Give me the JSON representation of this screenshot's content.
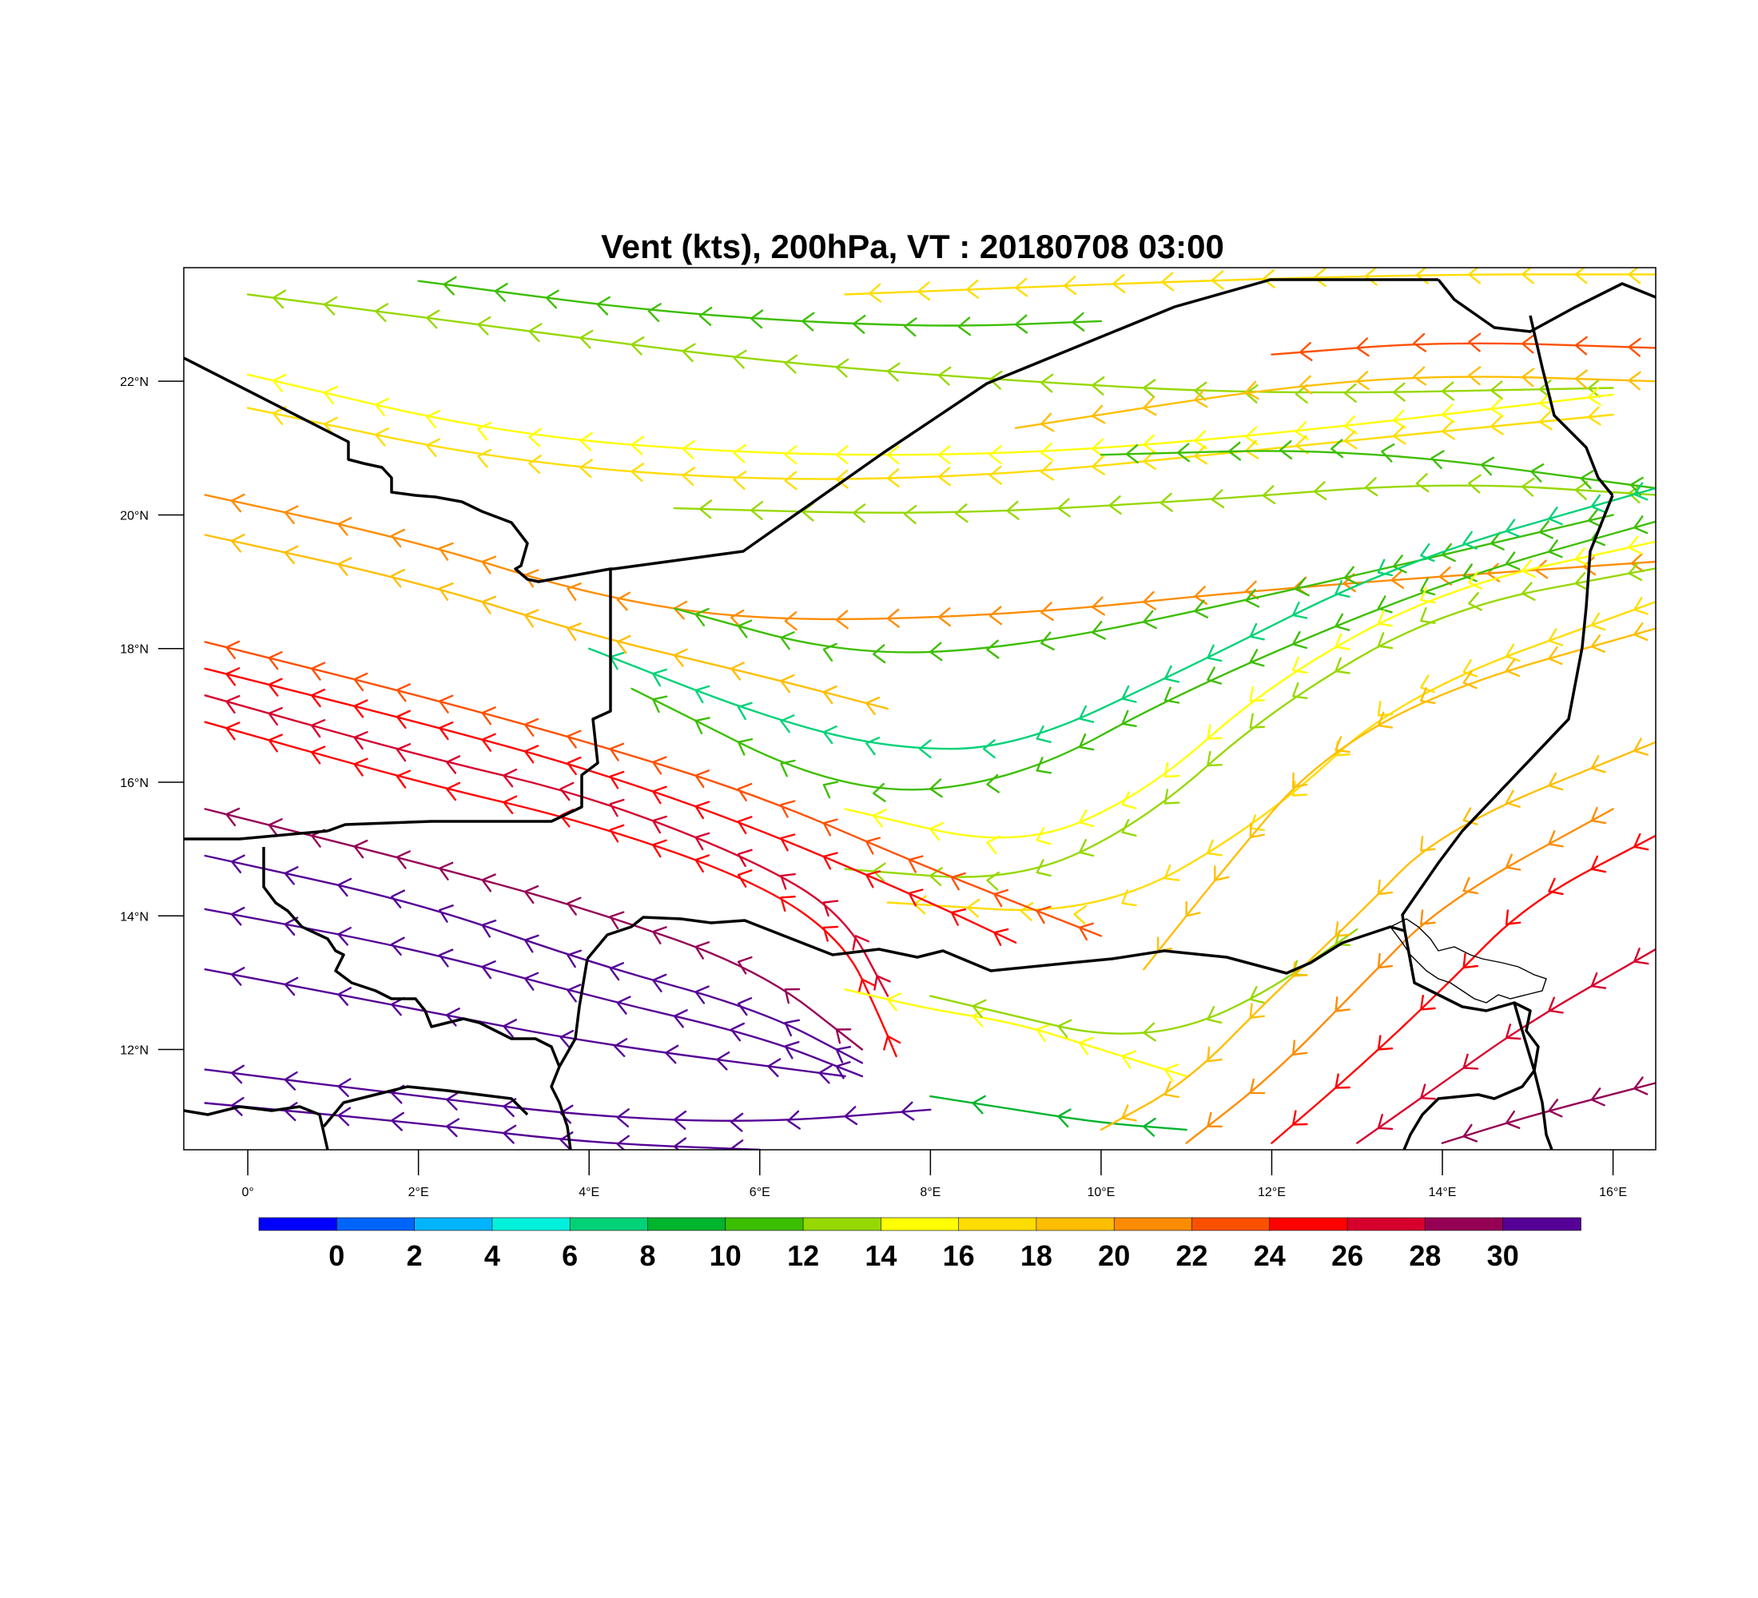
{
  "title": "Vent (kts), 200hPa, VT : 20180708  03:00",
  "lat_labels": [
    "22°N",
    "20°N",
    "18°N",
    "16°N",
    "14°N",
    "12°N"
  ],
  "lon_labels": [
    "0°",
    "2°E",
    "4°E",
    "6°E",
    "8°E",
    "10°E",
    "12°E",
    "14°E",
    "16°E"
  ],
  "colorbar": {
    "labels": [
      "0",
      "2",
      "4",
      "6",
      "8",
      "10",
      "12",
      "14",
      "16",
      "18",
      "20",
      "22",
      "24",
      "26",
      "28",
      "30"
    ],
    "colors": [
      "#0000ff",
      "#0064ff",
      "#00b4ff",
      "#00f0dc",
      "#00d278",
      "#00b42d",
      "#3cbe00",
      "#96d800",
      "#ffff00",
      "#ffdc00",
      "#ffbe00",
      "#ff8c00",
      "#ff5000",
      "#ff0000",
      "#d7002d",
      "#960055",
      "#550096"
    ]
  },
  "chart_data": {
    "type": "streamline-map",
    "variable": "Vent (kts)",
    "level": "200hPa",
    "valid_time": "20180708  03:00",
    "lon_range": [
      -0.75,
      16.5
    ],
    "lat_range": [
      10.5,
      23.7
    ],
    "colorbar_range": [
      0,
      30
    ],
    "streamlines": [
      {
        "speed": 12,
        "points": [
          [
            0,
            23.3
          ],
          [
            3,
            22.8
          ],
          [
            6,
            22.3
          ],
          [
            9,
            22.0
          ],
          [
            12,
            21.8
          ],
          [
            16,
            21.9
          ]
        ]
      },
      {
        "speed": 10,
        "points": [
          [
            2,
            23.5
          ],
          [
            5,
            23.0
          ],
          [
            8,
            22.8
          ],
          [
            10,
            22.9
          ]
        ]
      },
      {
        "speed": 16,
        "points": [
          [
            7,
            23.3
          ],
          [
            11,
            23.5
          ],
          [
            14,
            23.6
          ],
          [
            16.5,
            23.6
          ]
        ]
      },
      {
        "speed": 14,
        "points": [
          [
            0,
            22.1
          ],
          [
            3,
            21.2
          ],
          [
            6,
            20.9
          ],
          [
            9,
            20.9
          ],
          [
            12,
            21.2
          ],
          [
            16,
            21.8
          ]
        ]
      },
      {
        "speed": 16,
        "points": [
          [
            0,
            21.6
          ],
          [
            3,
            20.8
          ],
          [
            6,
            20.5
          ],
          [
            9,
            20.6
          ],
          [
            12,
            21.0
          ],
          [
            16,
            21.5
          ]
        ]
      },
      {
        "speed": 18,
        "points": [
          [
            9,
            21.3
          ],
          [
            12,
            21.9
          ],
          [
            14,
            22.1
          ],
          [
            16.5,
            22.0
          ]
        ]
      },
      {
        "speed": 22,
        "points": [
          [
            12,
            22.4
          ],
          [
            14,
            22.6
          ],
          [
            16.5,
            22.5
          ]
        ]
      },
      {
        "speed": 12,
        "points": [
          [
            5,
            20.1
          ],
          [
            8,
            20.0
          ],
          [
            11,
            20.2
          ],
          [
            14,
            20.5
          ],
          [
            16.5,
            20.3
          ]
        ]
      },
      {
        "speed": 10,
        "points": [
          [
            10,
            20.9
          ],
          [
            13,
            21.0
          ],
          [
            16.5,
            20.4
          ]
        ]
      },
      {
        "speed": 20,
        "points": [
          [
            -0.5,
            20.3
          ],
          [
            2,
            19.6
          ],
          [
            4,
            18.8
          ],
          [
            6,
            18.4
          ],
          [
            9,
            18.5
          ],
          [
            12,
            18.9
          ],
          [
            16.5,
            19.3
          ]
        ]
      },
      {
        "speed": 18,
        "points": [
          [
            -0.5,
            19.7
          ],
          [
            2,
            19.0
          ],
          [
            4,
            18.2
          ],
          [
            6,
            17.6
          ],
          [
            7.5,
            17.1
          ]
        ]
      },
      {
        "speed": 10,
        "points": [
          [
            5,
            18.6
          ],
          [
            7,
            17.9
          ],
          [
            9,
            18.0
          ],
          [
            12,
            18.8
          ],
          [
            16,
            20.0
          ]
        ]
      },
      {
        "speed": 6,
        "points": [
          [
            4,
            18.0
          ],
          [
            6,
            17.0
          ],
          [
            7.5,
            16.5
          ],
          [
            9,
            16.5
          ],
          [
            11,
            17.7
          ],
          [
            13.5,
            19.3
          ],
          [
            16.5,
            20.4
          ]
        ]
      },
      {
        "speed": 10,
        "points": [
          [
            4.5,
            17.4
          ],
          [
            7,
            15.8
          ],
          [
            9,
            16.0
          ],
          [
            11,
            17.4
          ],
          [
            14,
            19.0
          ],
          [
            16.5,
            19.9
          ]
        ]
      },
      {
        "speed": 14,
        "points": [
          [
            7,
            15.6
          ],
          [
            9,
            15.0
          ],
          [
            10.5,
            15.8
          ],
          [
            12,
            17.5
          ],
          [
            14,
            18.9
          ],
          [
            16.5,
            19.6
          ]
        ]
      },
      {
        "speed": 12,
        "points": [
          [
            7,
            14.7
          ],
          [
            9,
            14.5
          ],
          [
            10.5,
            15.4
          ],
          [
            12,
            17.1
          ],
          [
            14,
            18.6
          ],
          [
            16.5,
            19.2
          ]
        ]
      },
      {
        "speed": 16,
        "points": [
          [
            7.5,
            14.2
          ],
          [
            10,
            14.0
          ],
          [
            12,
            15.5
          ],
          [
            13.5,
            17.3
          ],
          [
            16.5,
            18.7
          ]
        ]
      },
      {
        "speed": 22,
        "points": [
          [
            -0.5,
            18.1
          ],
          [
            2,
            17.3
          ],
          [
            4,
            16.6
          ],
          [
            6,
            15.8
          ],
          [
            8,
            14.7
          ],
          [
            10,
            13.7
          ]
        ]
      },
      {
        "speed": 24,
        "points": [
          [
            -0.5,
            17.7
          ],
          [
            2,
            16.9
          ],
          [
            4,
            16.2
          ],
          [
            6,
            15.3
          ],
          [
            8,
            14.2
          ],
          [
            9,
            13.6
          ]
        ]
      },
      {
        "speed": 26,
        "points": [
          [
            -0.5,
            17.3
          ],
          [
            2,
            16.4
          ],
          [
            4,
            15.8
          ],
          [
            6,
            14.8
          ],
          [
            7,
            14.0
          ],
          [
            7.5,
            12.8
          ]
        ]
      },
      {
        "speed": 24,
        "points": [
          [
            -0.5,
            16.9
          ],
          [
            2,
            16.0
          ],
          [
            4,
            15.4
          ],
          [
            6,
            14.5
          ],
          [
            7,
            13.6
          ],
          [
            7.4,
            12.5
          ],
          [
            7.6,
            11.9
          ]
        ]
      },
      {
        "speed": 28,
        "points": [
          [
            -0.5,
            15.6
          ],
          [
            2,
            14.8
          ],
          [
            4,
            14.1
          ],
          [
            6,
            13.2
          ],
          [
            7.2,
            12.0
          ]
        ]
      },
      {
        "speed": 30,
        "points": [
          [
            -0.5,
            14.9
          ],
          [
            2,
            14.2
          ],
          [
            4,
            13.3
          ],
          [
            6,
            12.6
          ],
          [
            7.2,
            11.8
          ]
        ]
      },
      {
        "speed": 30,
        "points": [
          [
            -0.5,
            14.1
          ],
          [
            2,
            13.5
          ],
          [
            4,
            12.8
          ],
          [
            6,
            12.2
          ],
          [
            7.2,
            11.6
          ]
        ]
      },
      {
        "speed": 30,
        "points": [
          [
            -0.5,
            13.2
          ],
          [
            2,
            12.6
          ],
          [
            4,
            12.1
          ],
          [
            7,
            11.6
          ]
        ]
      },
      {
        "speed": 30,
        "points": [
          [
            -0.5,
            11.7
          ],
          [
            2,
            11.3
          ],
          [
            4,
            11.0
          ],
          [
            6,
            10.9
          ],
          [
            8,
            11.1
          ]
        ]
      },
      {
        "speed": 30,
        "points": [
          [
            -0.5,
            11.2
          ],
          [
            2,
            10.9
          ],
          [
            4,
            10.6
          ],
          [
            6,
            10.5
          ]
        ]
      },
      {
        "speed": 14,
        "points": [
          [
            7,
            12.9
          ],
          [
            8,
            12.6
          ],
          [
            9,
            12.4
          ],
          [
            10,
            12.0
          ],
          [
            11,
            11.6
          ]
        ]
      },
      {
        "speed": 8,
        "points": [
          [
            8,
            11.3
          ],
          [
            9,
            11.1
          ],
          [
            10,
            10.9
          ],
          [
            11,
            10.8
          ]
        ]
      },
      {
        "speed": 12,
        "points": [
          [
            8,
            12.8
          ],
          [
            9,
            12.5
          ],
          [
            10,
            12.2
          ],
          [
            11,
            12.3
          ],
          [
            12,
            12.9
          ],
          [
            13,
            13.8
          ]
        ]
      },
      {
        "speed": 18,
        "points": [
          [
            10,
            10.8
          ],
          [
            11,
            11.5
          ],
          [
            12,
            12.8
          ],
          [
            13,
            14.0
          ],
          [
            14,
            15.3
          ],
          [
            16.5,
            16.6
          ]
        ]
      },
      {
        "speed": 20,
        "points": [
          [
            11,
            10.6
          ],
          [
            12,
            11.6
          ],
          [
            13,
            12.9
          ],
          [
            14,
            14.2
          ],
          [
            16,
            15.6
          ]
        ]
      },
      {
        "speed": 24,
        "points": [
          [
            12,
            10.6
          ],
          [
            13,
            11.7
          ],
          [
            14,
            12.9
          ],
          [
            15,
            14.2
          ],
          [
            16.5,
            15.2
          ]
        ]
      },
      {
        "speed": 26,
        "points": [
          [
            13,
            10.6
          ],
          [
            14,
            11.5
          ],
          [
            15,
            12.4
          ],
          [
            16.5,
            13.5
          ]
        ]
      },
      {
        "speed": 28,
        "points": [
          [
            14,
            10.6
          ],
          [
            15,
            11.0
          ],
          [
            16.5,
            11.5
          ]
        ]
      },
      {
        "speed": 18,
        "points": [
          [
            10.5,
            13.2
          ],
          [
            11.5,
            14.8
          ],
          [
            12.5,
            16.3
          ],
          [
            14,
            17.4
          ],
          [
            16.5,
            18.3
          ]
        ]
      }
    ]
  }
}
